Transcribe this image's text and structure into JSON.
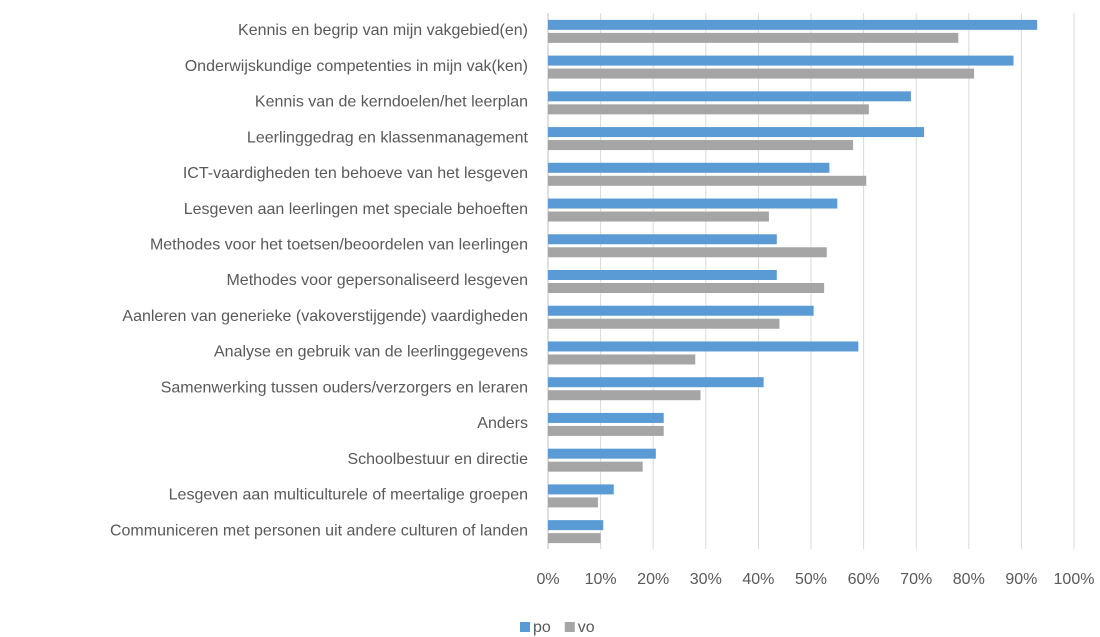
{
  "chart_data": {
    "type": "bar",
    "orientation": "horizontal",
    "categories": [
      "Kennis en begrip van mijn vakgebied(en)",
      "Onderwijskundige competenties in mijn vak(ken)",
      "Kennis van de kerndoelen/het leerplan",
      "Leerlinggedrag en klassenmanagement",
      "ICT-vaardigheden ten behoeve van het lesgeven",
      "Lesgeven aan leerlingen met speciale behoeften",
      "Methodes voor het toetsen/beoordelen van leerlingen",
      "Methodes voor gepersonaliseerd lesgeven",
      "Aanleren van generieke (vakoverstijgende) vaardigheden",
      "Analyse en gebruik van de leerlinggegevens",
      "Samenwerking tussen ouders/verzorgers en leraren",
      "Anders",
      "Schoolbestuur en directie",
      "Lesgeven aan multiculturele of meertalige groepen",
      "Communiceren met personen uit andere culturen of landen"
    ],
    "series": [
      {
        "name": "po",
        "color": "#5b9bd5",
        "values": [
          93,
          88.5,
          69,
          71.5,
          53.5,
          55,
          43.5,
          43.5,
          50.5,
          59,
          41,
          22,
          20.5,
          12.5,
          10.5
        ]
      },
      {
        "name": "vo",
        "color": "#a5a5a5",
        "values": [
          78,
          81,
          61,
          58,
          60.5,
          42,
          53,
          52.5,
          44,
          28,
          29,
          22,
          18,
          9.5,
          10
        ]
      }
    ],
    "xlim": [
      0,
      100
    ],
    "xticks": [
      {
        "value": 0,
        "label": "0%"
      },
      {
        "value": 10,
        "label": "10%"
      },
      {
        "value": 20,
        "label": "20%"
      },
      {
        "value": 30,
        "label": "30%"
      },
      {
        "value": 40,
        "label": "40%"
      },
      {
        "value": 50,
        "label": "50%"
      },
      {
        "value": 60,
        "label": "60%"
      },
      {
        "value": 70,
        "label": "70%"
      },
      {
        "value": 80,
        "label": "80%"
      },
      {
        "value": 90,
        "label": "90%"
      },
      {
        "value": 100,
        "label": "100%"
      }
    ],
    "grid": true,
    "legend": "bottom"
  }
}
